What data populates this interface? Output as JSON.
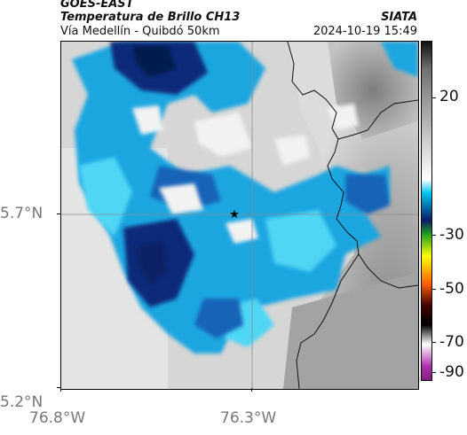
{
  "header": {
    "source": "GOES-EAST",
    "product": "Temperatura de Brillo CH13",
    "region": "Vía Medellín - Quibdó 50km",
    "org": "SIATA",
    "timestamp": "2024-10-19 15:49"
  },
  "map": {
    "lat_labels": [
      "5.7°N",
      "5.2°N"
    ],
    "lon_labels": [
      "76.8°W",
      "76.3°W"
    ],
    "marker": "star",
    "colors": {
      "cloud_cold_dark": "#0a2a7a",
      "cloud_mid": "#1aa6e0",
      "cloud_light": "#46d2f2",
      "clear_light": "#f2f2f2",
      "clear_gray": "#9a9a9a",
      "border_line": "#111111"
    }
  },
  "colorbar": {
    "ticks": [
      "20",
      "-30",
      "-50",
      "-70",
      "-90"
    ],
    "stops": [
      {
        "value": 30,
        "color": "#111111"
      },
      {
        "value": 20,
        "color": "#707070"
      },
      {
        "value": -20,
        "color": "#ffffff"
      },
      {
        "value": -25,
        "color": "#00c8f0"
      },
      {
        "value": -35,
        "color": "#0a1a6a"
      },
      {
        "value": -40,
        "color": "#20a020"
      },
      {
        "value": -48,
        "color": "#ffff00"
      },
      {
        "value": -58,
        "color": "#ff6000"
      },
      {
        "value": -66,
        "color": "#400000"
      },
      {
        "value": -73,
        "color": "#000000"
      },
      {
        "value": -80,
        "color": "#ffffff"
      },
      {
        "value": -88,
        "color": "#b030b0"
      },
      {
        "value": -93,
        "color": "#802080"
      }
    ]
  }
}
